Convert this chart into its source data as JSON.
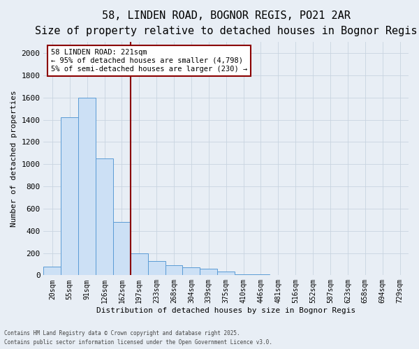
{
  "title1": "58, LINDEN ROAD, BOGNOR REGIS, PO21 2AR",
  "title2": "Size of property relative to detached houses in Bognor Regis",
  "xlabel": "Distribution of detached houses by size in Bognor Regis",
  "ylabel": "Number of detached properties",
  "bin_labels": [
    "20sqm",
    "55sqm",
    "91sqm",
    "126sqm",
    "162sqm",
    "197sqm",
    "233sqm",
    "268sqm",
    "304sqm",
    "339sqm",
    "375sqm",
    "410sqm",
    "446sqm",
    "481sqm",
    "516sqm",
    "552sqm",
    "587sqm",
    "623sqm",
    "658sqm",
    "694sqm",
    "729sqm"
  ],
  "bin_values": [
    80,
    1420,
    1600,
    1050,
    480,
    200,
    130,
    90,
    70,
    60,
    35,
    10,
    8,
    5,
    0,
    0,
    0,
    0,
    0,
    0,
    0
  ],
  "bar_color": "#cce0f5",
  "bar_edge_color": "#5b9bd5",
  "vline_x_index": 4.5,
  "vline_color": "#8b0000",
  "annotation_text": "58 LINDEN ROAD: 221sqm\n← 95% of detached houses are smaller (4,798)\n5% of semi-detached houses are larger (230) →",
  "annotation_box_color": "#ffffff",
  "annotation_box_edge": "#8b0000",
  "ylim": [
    0,
    2100
  ],
  "yticks": [
    0,
    200,
    400,
    600,
    800,
    1000,
    1200,
    1400,
    1600,
    1800,
    2000
  ],
  "bg_color": "#e8eef5",
  "footer1": "Contains HM Land Registry data © Crown copyright and database right 2025.",
  "footer2": "Contains public sector information licensed under the Open Government Licence v3.0.",
  "grid_color": "#c8d4e0",
  "title_fontsize": 11,
  "subtitle_fontsize": 9
}
